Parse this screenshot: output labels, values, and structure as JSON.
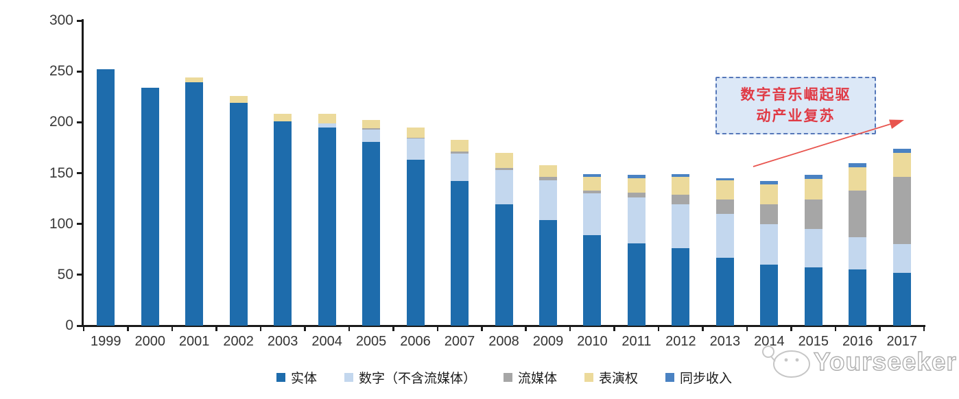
{
  "chart_data": {
    "type": "bar",
    "stacked": true,
    "title": "",
    "xlabel": "",
    "ylabel": "",
    "ylim": [
      0,
      300
    ],
    "yticks": [
      0,
      50,
      100,
      150,
      200,
      250,
      300
    ],
    "grid": false,
    "legend_position": "bottom",
    "categories": [
      "1999",
      "2000",
      "2001",
      "2002",
      "2003",
      "2004",
      "2005",
      "2006",
      "2007",
      "2008",
      "2009",
      "2010",
      "2011",
      "2012",
      "2013",
      "2014",
      "2015",
      "2016",
      "2017"
    ],
    "series": [
      {
        "name": "实体",
        "color": "#1e6cac",
        "values": [
          252,
          234,
          239,
          219,
          201,
          195,
          181,
          163,
          142,
          119,
          104,
          89,
          81,
          76,
          67,
          60,
          57,
          55,
          52
        ]
      },
      {
        "name": "数字（不含流媒体）",
        "color": "#c3d7ee",
        "values": [
          0,
          0,
          0,
          0,
          0,
          4,
          12,
          21,
          27,
          34,
          39,
          41,
          45,
          43,
          43,
          40,
          38,
          32,
          28
        ]
      },
      {
        "name": "流媒体",
        "color": "#a6a6a6",
        "values": [
          0,
          0,
          0,
          0,
          0,
          0,
          1,
          1,
          2,
          2,
          3,
          3,
          5,
          10,
          14,
          19,
          29,
          46,
          66
        ]
      },
      {
        "name": "表演权",
        "color": "#ecda9b",
        "values": [
          0,
          0,
          5,
          7,
          7,
          9,
          8,
          10,
          12,
          15,
          12,
          13,
          14,
          17,
          19,
          20,
          20,
          23,
          24
        ]
      },
      {
        "name": "同步收入",
        "color": "#4a82c2",
        "values": [
          0,
          0,
          0,
          0,
          0,
          0,
          0,
          0,
          0,
          0,
          0,
          3,
          3,
          3,
          2,
          3,
          4,
          4,
          4
        ]
      }
    ]
  },
  "annotation": {
    "line1": "数字音乐崛起驱",
    "line2": "动产业复苏"
  },
  "watermark": {
    "text": "Yourseeker"
  },
  "colors": {
    "axis": "#1a1a1a",
    "tick_label": "#3a3a3a",
    "annotation_border": "#5577b9",
    "annotation_fill": "#dce8f7",
    "annotation_text": "#e03a45",
    "arrow": "#e8544e"
  }
}
